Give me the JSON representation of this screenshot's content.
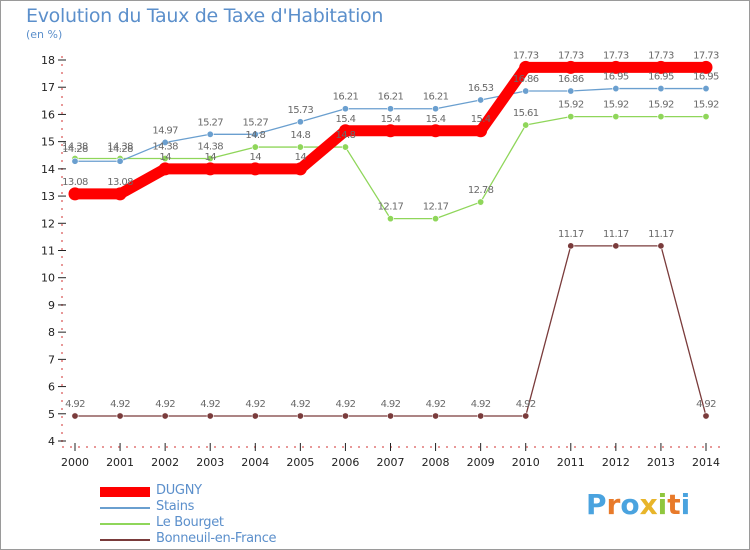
{
  "header": {
    "title": "Evolution du Taux de Taxe d'Habitation",
    "subtitle": "(en %)"
  },
  "chart_data": {
    "type": "line",
    "title": "Evolution du Taux de Taxe d'Habitation",
    "subtitle": "(en %)",
    "xlabel": "",
    "ylabel": "(en %)",
    "x": [
      "2000",
      "2001",
      "2002",
      "2003",
      "2004",
      "2005",
      "2006",
      "2007",
      "2008",
      "2009",
      "2010",
      "2011",
      "2012",
      "2013",
      "2014"
    ],
    "y_ticks": [
      4,
      5,
      6,
      7,
      8,
      9,
      10,
      11,
      12,
      13,
      14,
      15,
      16,
      17,
      18
    ],
    "ylim": [
      4,
      18
    ],
    "grid": false,
    "legend_position": "bottom-left",
    "series": [
      {
        "name": "DUGNY",
        "color": "#ff0000",
        "values": [
          13.08,
          13.08,
          14,
          14,
          14,
          14,
          15.4,
          15.4,
          15.4,
          15.4,
          17.73,
          17.73,
          17.73,
          17.73,
          17.73
        ],
        "labels": [
          "13.08",
          "13.08",
          "14",
          "14",
          "14",
          "14",
          "15.4",
          "15.4",
          "15.4",
          "15.4",
          "17.73",
          "17.73",
          "17.73",
          "17.73",
          "17.73"
        ]
      },
      {
        "name": "Stains",
        "color": "#6a9fcf",
        "values": [
          14.28,
          14.28,
          14.97,
          15.27,
          15.27,
          15.73,
          16.21,
          16.21,
          16.21,
          16.53,
          16.86,
          16.86,
          16.95,
          16.95,
          16.95
        ],
        "labels": [
          "14.28",
          "14.28",
          "14.97",
          "15.27",
          "15.27",
          "15.73",
          "16.21",
          "16.21",
          "16.21",
          "16.53",
          "16.86",
          "16.86",
          "16.95",
          "16.95",
          "16.95"
        ]
      },
      {
        "name": "Le Bourget",
        "color": "#8fd65a",
        "values": [
          14.38,
          14.38,
          14.38,
          14.38,
          14.8,
          14.8,
          14.8,
          12.17,
          12.17,
          12.78,
          15.61,
          15.92,
          15.92,
          15.92,
          15.92
        ],
        "labels": [
          "14.38",
          "14.38",
          "14.38",
          "14.38",
          "14.8",
          "14.8",
          "14.8",
          "12.17",
          "12.17",
          "12.78",
          "15.61",
          "15.92",
          "15.92",
          "15.92",
          "15.92"
        ]
      },
      {
        "name": "Bonneuil-en-France",
        "color": "#7a3b3b",
        "values": [
          4.92,
          4.92,
          4.92,
          4.92,
          4.92,
          4.92,
          4.92,
          4.92,
          4.92,
          4.92,
          4.92,
          11.17,
          11.17,
          11.17,
          4.92
        ],
        "labels": [
          "4.92",
          "4.92",
          "4.92",
          "4.92",
          "4.92",
          "4.92",
          "4.92",
          "4.92",
          "4.92",
          "4.92",
          "4.92",
          "11.17",
          "11.17",
          "11.17",
          "4.92"
        ]
      }
    ]
  },
  "logo": {
    "text": "Proxiti",
    "letter_colors": [
      "#4aa3df",
      "#e87a2a",
      "#4aa3df",
      "#e8b52a",
      "#8fc73e",
      "#e87a2a",
      "#4aa3df"
    ]
  }
}
